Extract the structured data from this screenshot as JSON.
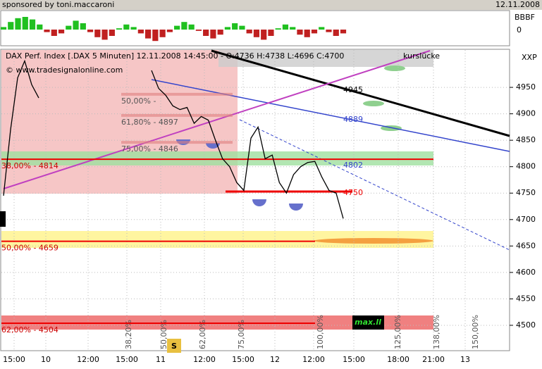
{
  "chart_data": {
    "type": "line",
    "sponsor": "sponsored by toni.maccaroni",
    "date": "12.11.2008",
    "indicator_labels": [
      "BBBF",
      "0"
    ],
    "header": "DAX Perf. Index [.DAX  5 Minuten] 12.11.2008 14:45:00 - O:4736 H:4738 L:4696 C:4700",
    "copyright": "© www.tradesignalonline.com",
    "axis_label": "XXP",
    "annotation": "kurslücke",
    "signal": "S",
    "max_label": "max.ll",
    "ylim": [
      4452,
      5022
    ],
    "yticks": [
      4500,
      4550,
      4600,
      4650,
      4700,
      4750,
      4800,
      4850,
      4900,
      4950
    ],
    "x_labels": [
      "15:00",
      "10",
      "12:00",
      "15:00",
      "11",
      "12:00",
      "15:00",
      "12",
      "12:00",
      "15:00",
      "18:00",
      "21:00",
      "13"
    ],
    "fib_labels": [
      "38,20%",
      "50,00%",
      "62,00%",
      "75,00%",
      "100,00%",
      "125,00%",
      "138,00%",
      "150,00%"
    ],
    "levels": [
      {
        "label": "38,00% - 4814",
        "value": 4814
      },
      {
        "label": "50,00% - 4659",
        "value": 4659
      },
      {
        "label": "62,00% - 4504",
        "value": 4504
      },
      {
        "label": "50,00% -",
        "value": 4937
      },
      {
        "label": "61,80% - 4897",
        "value": 4897
      },
      {
        "label": "75,00% - 4846",
        "value": 4846
      }
    ],
    "right_labels": [
      4945,
      4889,
      4802,
      4750
    ],
    "series": [
      {
        "name": "DAX",
        "color": "#000000",
        "values": [
          4745,
          4870,
          4968,
          5000,
          4955,
          4930,
          null,
          4982,
          4948,
          4935,
          4915,
          4908,
          4912,
          4882,
          4895,
          4888,
          4850,
          4815,
          4800,
          4770,
          4755,
          4854,
          4875,
          4815,
          4822,
          4770,
          4750,
          4785,
          4800,
          4808,
          4810,
          4780,
          4755,
          4750,
          4702
        ]
      }
    ],
    "oscillator": [
      0.2,
      0.6,
      0.9,
      1,
      0.8,
      0.4,
      -0.2,
      -0.5,
      -0.3,
      0.3,
      0.7,
      0.5,
      -0.2,
      -0.6,
      -0.8,
      -0.5,
      0.1,
      0.4,
      0.2,
      -0.3,
      -0.7,
      -0.9,
      -0.6,
      -0.2,
      0.3,
      0.6,
      0.4,
      -0.1,
      -0.5,
      -0.7,
      -0.4,
      0.2,
      0.5,
      0.3,
      -0.3,
      -0.6,
      -0.8,
      -0.5,
      0.1,
      0.4,
      0.2,
      -0.4,
      -0.6,
      -0.3,
      0.2,
      -0.2,
      -0.5,
      -0.3
    ]
  }
}
